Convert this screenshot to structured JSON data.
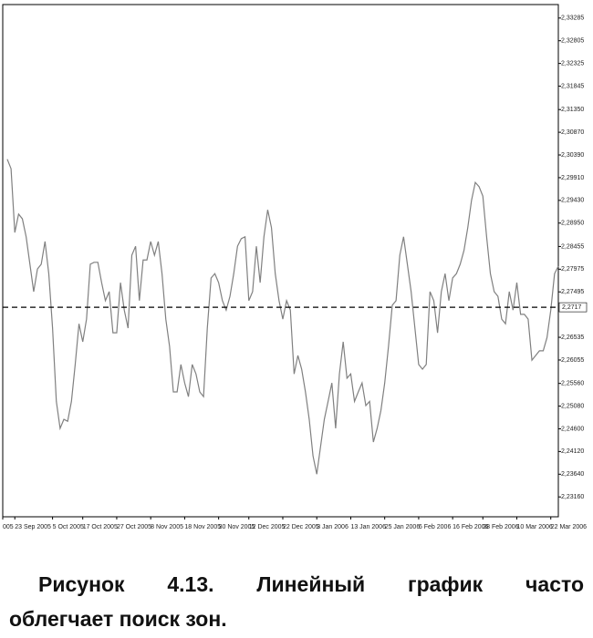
{
  "chart_data": {
    "type": "line",
    "series": [
      {
        "color": "#808080",
        "values": [
          2.303,
          2.301,
          2.2875,
          2.2914,
          2.2904,
          2.2866,
          2.2808,
          2.275,
          2.2798,
          2.2808,
          2.2856,
          2.2788,
          2.2673,
          2.2518,
          2.2461,
          2.248,
          2.2476,
          2.2518,
          2.2596,
          2.2682,
          2.2644,
          2.2692,
          2.2808,
          2.2812,
          2.2812,
          2.2769,
          2.2731,
          2.275,
          2.2663,
          2.2663,
          2.2769,
          2.2711,
          2.2673,
          2.2827,
          2.2846,
          2.2731,
          2.2817,
          2.2817,
          2.2856,
          2.2827,
          2.2856,
          2.2788,
          2.2692,
          2.2634,
          2.2538,
          2.2538,
          2.2596,
          2.2557,
          2.2528,
          2.2596,
          2.2576,
          2.2538,
          2.2528,
          2.2673,
          2.2779,
          2.2788,
          2.2769,
          2.2731,
          2.2711,
          2.274,
          2.2788,
          2.2846,
          2.2862,
          2.2866,
          2.2731,
          2.275,
          2.2846,
          2.2769,
          2.2866,
          2.2923,
          2.2885,
          2.2788,
          2.2731,
          2.2692,
          2.2731,
          2.2711,
          2.2576,
          2.2615,
          2.2586,
          2.2538,
          2.248,
          2.2403,
          2.2364,
          2.2422,
          2.248,
          2.2518,
          2.2557,
          2.2461,
          2.2576,
          2.2644,
          2.2567,
          2.2576,
          2.2518,
          2.2538,
          2.2557,
          2.2509,
          2.2518,
          2.2432,
          2.2461,
          2.2499,
          2.2557,
          2.2634,
          2.2721,
          2.2731,
          2.2827,
          2.2866,
          2.2808,
          2.275,
          2.2673,
          2.2596,
          2.2586,
          2.2596,
          2.275,
          2.2731,
          2.2663,
          2.275,
          2.2788,
          2.2731,
          2.2779,
          2.2788,
          2.2808,
          2.2837,
          2.2885,
          2.2943,
          2.2981,
          2.2972,
          2.2952,
          2.2866,
          2.2788,
          2.275,
          2.274,
          2.2692,
          2.2682,
          2.275,
          2.2711,
          2.2769,
          2.2702,
          2.2702,
          2.2692,
          2.2605,
          2.2615,
          2.2625,
          2.2625,
          2.2653,
          2.2711,
          2.2788,
          2.2804
        ]
      }
    ],
    "xlim": [
      -1.2,
      146
    ],
    "xticks": [
      {
        "value": -1.2,
        "label": "005"
      },
      {
        "value": 2,
        "label": "23 Sep 2005"
      },
      {
        "value": 12,
        "label": "5 Oct 2005"
      },
      {
        "value": 20,
        "label": "17 Oct 2005"
      },
      {
        "value": 29,
        "label": "27 Oct 2005"
      },
      {
        "value": 38,
        "label": "8 Nov 2005"
      },
      {
        "value": 47,
        "label": "18 Nov 2005"
      },
      {
        "value": 56,
        "label": "30 Nov 2005"
      },
      {
        "value": 64,
        "label": "12 Dec 2005"
      },
      {
        "value": 73,
        "label": "22 Dec 2005"
      },
      {
        "value": 82,
        "label": "3 Jan 2006"
      },
      {
        "value": 91,
        "label": "13 Jan 2006"
      },
      {
        "value": 100,
        "label": "25 Jan 2006"
      },
      {
        "value": 109,
        "label": "6 Feb 2006"
      },
      {
        "value": 118,
        "label": "16 Feb 2006"
      },
      {
        "value": 126,
        "label": "28 Feb 2006"
      },
      {
        "value": 135,
        "label": "10 Mar 2006"
      },
      {
        "value": 144,
        "label": "22 Mar 2006"
      }
    ],
    "ylim": [
      2.2274,
      2.3357
    ],
    "yticks": [
      {
        "value": 2.33285,
        "label": "2,33285"
      },
      {
        "value": 2.32805,
        "label": "2,32805"
      },
      {
        "value": 2.32325,
        "label": "2,32325"
      },
      {
        "value": 2.31845,
        "label": "2,31845"
      },
      {
        "value": 2.3135,
        "label": "2,31350"
      },
      {
        "value": 2.3087,
        "label": "2,30870"
      },
      {
        "value": 2.3039,
        "label": "2,30390"
      },
      {
        "value": 2.2991,
        "label": "2,29910"
      },
      {
        "value": 2.2943,
        "label": "2,29430"
      },
      {
        "value": 2.2895,
        "label": "2,28950"
      },
      {
        "value": 2.28455,
        "label": "2,28455"
      },
      {
        "value": 2.27975,
        "label": "2,27975"
      },
      {
        "value": 2.27495,
        "label": "2,27495"
      },
      {
        "value": 2.26535,
        "label": "2,26535"
      },
      {
        "value": 2.26055,
        "label": "2,26055"
      },
      {
        "value": 2.2556,
        "label": "2,25560"
      },
      {
        "value": 2.2508,
        "label": "2,25080"
      },
      {
        "value": 2.246,
        "label": "2,24600"
      },
      {
        "value": 2.2412,
        "label": "2,24120"
      },
      {
        "value": 2.2364,
        "label": "2,23640"
      },
      {
        "value": 2.2316,
        "label": "2,23160"
      }
    ],
    "hline": {
      "value": 2.2717,
      "label": "2,2717",
      "color": "#000000"
    }
  },
  "caption": [
    "Рисунок 4.13. Линейный график часто",
    "облегчает поиск зон."
  ]
}
